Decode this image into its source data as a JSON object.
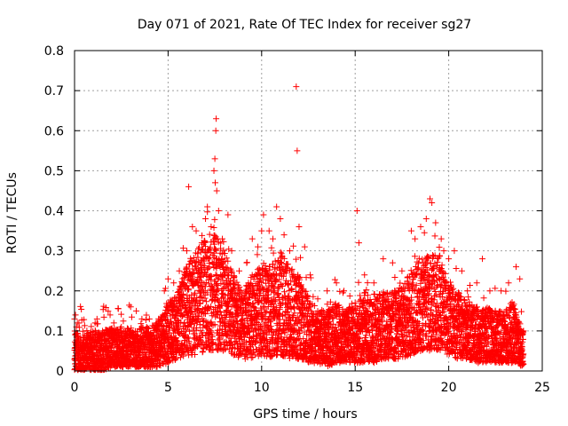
{
  "chart_data": {
    "type": "scatter",
    "title": "Day 071 of 2021, Rate Of TEC Index for receiver sg27",
    "xlabel": "GPS time / hours",
    "ylabel": "ROTI / TECUs",
    "xlim": [
      0,
      25
    ],
    "ylim": [
      0,
      0.8
    ],
    "xticks": [
      "0",
      "5",
      "10",
      "15",
      "20",
      "25"
    ],
    "yticks": [
      "0",
      "0.1",
      "0.2",
      "0.3",
      "0.4",
      "0.5",
      "0.6",
      "0.7",
      "0.8"
    ],
    "grid": true,
    "marker": "+",
    "color": "#ff0000",
    "series": [
      {
        "points": [
          [
            0.0,
            0.13
          ],
          [
            0.05,
            0.14
          ],
          [
            0.1,
            0.11
          ],
          [
            0.15,
            0.12
          ],
          [
            0.2,
            0.08
          ],
          [
            0.3,
            0.06
          ],
          [
            0.5,
            0.07
          ],
          [
            0.8,
            0.09
          ],
          [
            1.1,
            0.12
          ],
          [
            1.2,
            0.13
          ],
          [
            1.5,
            0.1
          ],
          [
            1.9,
            0.14
          ],
          [
            2.1,
            0.12
          ],
          [
            2.5,
            0.11
          ],
          [
            3.0,
            0.16
          ],
          [
            3.3,
            0.15
          ],
          [
            3.6,
            0.13
          ],
          [
            4.0,
            0.13
          ],
          [
            4.4,
            0.12
          ],
          [
            4.8,
            0.2
          ],
          [
            5.0,
            0.23
          ],
          [
            5.3,
            0.22
          ],
          [
            5.6,
            0.25
          ],
          [
            6.0,
            0.3
          ],
          [
            6.1,
            0.46
          ],
          [
            6.3,
            0.36
          ],
          [
            6.5,
            0.35
          ],
          [
            6.8,
            0.32
          ],
          [
            7.0,
            0.38
          ],
          [
            7.1,
            0.41
          ],
          [
            7.3,
            0.36
          ],
          [
            7.45,
            0.5
          ],
          [
            7.5,
            0.53
          ],
          [
            7.52,
            0.47
          ],
          [
            7.55,
            0.6
          ],
          [
            7.57,
            0.63
          ],
          [
            7.6,
            0.45
          ],
          [
            7.7,
            0.4
          ],
          [
            7.9,
            0.33
          ],
          [
            8.2,
            0.39
          ],
          [
            8.4,
            0.3
          ],
          [
            8.8,
            0.25
          ],
          [
            9.2,
            0.27
          ],
          [
            9.5,
            0.33
          ],
          [
            9.8,
            0.31
          ],
          [
            10.0,
            0.35
          ],
          [
            10.1,
            0.39
          ],
          [
            10.4,
            0.35
          ],
          [
            10.6,
            0.33
          ],
          [
            10.8,
            0.41
          ],
          [
            11.0,
            0.38
          ],
          [
            11.2,
            0.34
          ],
          [
            11.5,
            0.3
          ],
          [
            11.85,
            0.71
          ],
          [
            11.9,
            0.55
          ],
          [
            12.0,
            0.36
          ],
          [
            12.3,
            0.31
          ],
          [
            12.6,
            0.24
          ],
          [
            13.0,
            0.18
          ],
          [
            13.5,
            0.2
          ],
          [
            14.0,
            0.22
          ],
          [
            14.4,
            0.2
          ],
          [
            15.0,
            0.17
          ],
          [
            15.1,
            0.4
          ],
          [
            15.2,
            0.32
          ],
          [
            15.5,
            0.24
          ],
          [
            16.0,
            0.22
          ],
          [
            16.5,
            0.28
          ],
          [
            17.0,
            0.27
          ],
          [
            17.5,
            0.25
          ],
          [
            18.0,
            0.35
          ],
          [
            18.2,
            0.33
          ],
          [
            18.5,
            0.36
          ],
          [
            18.8,
            0.38
          ],
          [
            19.0,
            0.43
          ],
          [
            19.1,
            0.42
          ],
          [
            19.3,
            0.37
          ],
          [
            19.6,
            0.33
          ],
          [
            20.0,
            0.28
          ],
          [
            20.3,
            0.3
          ],
          [
            20.7,
            0.25
          ],
          [
            21.0,
            0.2
          ],
          [
            21.5,
            0.22
          ],
          [
            21.8,
            0.28
          ],
          [
            22.2,
            0.2
          ],
          [
            22.8,
            0.2
          ],
          [
            23.2,
            0.22
          ],
          [
            23.6,
            0.26
          ],
          [
            23.8,
            0.23
          ],
          [
            24.0,
            0.1
          ]
        ]
      }
    ],
    "envelope": {
      "description_free_note": "",
      "hours": [
        0,
        0.5,
        1,
        1.5,
        2,
        2.5,
        3,
        3.5,
        4,
        4.5,
        5,
        5.5,
        6,
        6.5,
        7,
        7.5,
        8,
        8.5,
        9,
        9.5,
        10,
        10.5,
        11,
        11.5,
        12,
        12.5,
        13,
        13.5,
        14,
        14.5,
        15,
        15.5,
        16,
        16.5,
        17,
        17.5,
        18,
        18.5,
        19,
        19.5,
        20,
        20.5,
        21,
        21.5,
        22,
        22.5,
        23,
        23.5,
        24
      ],
      "upper": [
        0.1,
        0.09,
        0.1,
        0.1,
        0.11,
        0.1,
        0.11,
        0.11,
        0.11,
        0.12,
        0.17,
        0.2,
        0.27,
        0.3,
        0.33,
        0.34,
        0.3,
        0.24,
        0.2,
        0.24,
        0.27,
        0.27,
        0.3,
        0.26,
        0.24,
        0.19,
        0.15,
        0.15,
        0.17,
        0.16,
        0.16,
        0.2,
        0.18,
        0.2,
        0.2,
        0.21,
        0.26,
        0.28,
        0.3,
        0.28,
        0.23,
        0.2,
        0.17,
        0.16,
        0.16,
        0.15,
        0.15,
        0.17,
        0.1
      ],
      "lower": [
        0.0,
        0.0,
        0.0,
        0.0,
        0.01,
        0.01,
        0.01,
        0.01,
        0.01,
        0.01,
        0.02,
        0.03,
        0.04,
        0.04,
        0.05,
        0.05,
        0.05,
        0.04,
        0.03,
        0.03,
        0.04,
        0.03,
        0.04,
        0.03,
        0.03,
        0.02,
        0.02,
        0.01,
        0.02,
        0.02,
        0.02,
        0.02,
        0.02,
        0.03,
        0.03,
        0.03,
        0.04,
        0.05,
        0.05,
        0.05,
        0.04,
        0.03,
        0.03,
        0.02,
        0.02,
        0.02,
        0.02,
        0.02,
        0.01
      ]
    }
  }
}
